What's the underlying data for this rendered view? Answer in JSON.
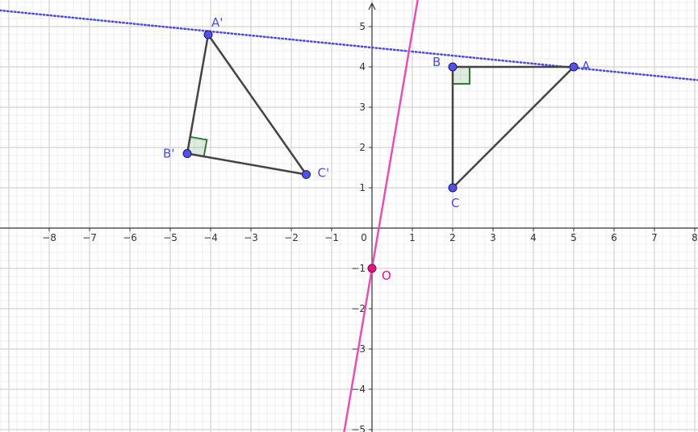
{
  "graph": {
    "x_ticks": [
      {
        "v": -8,
        "label": "−8"
      },
      {
        "v": -7,
        "label": "−7"
      },
      {
        "v": -6,
        "label": "−6"
      },
      {
        "v": -5,
        "label": "−5"
      },
      {
        "v": -4,
        "label": "−4"
      },
      {
        "v": -3,
        "label": "−3"
      },
      {
        "v": -2,
        "label": "−2"
      },
      {
        "v": -1,
        "label": "−1"
      },
      {
        "v": 0,
        "label": "0"
      },
      {
        "v": 1,
        "label": "1"
      },
      {
        "v": 2,
        "label": "2"
      },
      {
        "v": 3,
        "label": "3"
      },
      {
        "v": 4,
        "label": "4"
      },
      {
        "v": 5,
        "label": "5"
      },
      {
        "v": 6,
        "label": "6"
      },
      {
        "v": 7,
        "label": "7"
      },
      {
        "v": 8,
        "label": "8"
      }
    ],
    "y_ticks": [
      {
        "v": 5,
        "label": "5"
      },
      {
        "v": 4,
        "label": "4"
      },
      {
        "v": 3,
        "label": "3"
      },
      {
        "v": 2,
        "label": "2"
      },
      {
        "v": 1,
        "label": "1"
      },
      {
        "v": -1,
        "label": "−1"
      },
      {
        "v": -2,
        "label": "−2"
      },
      {
        "v": -3,
        "label": "−3"
      },
      {
        "v": -4,
        "label": "−4"
      },
      {
        "v": -5,
        "label": "−5"
      }
    ],
    "x_range": [
      -9.1,
      8.0
    ],
    "y_range": [
      -5.05,
      5.55
    ],
    "colors": {
      "point": "#5151e8",
      "point_label": "#4a4ae0",
      "segment": "#444444",
      "right_angle": "#2e7d32",
      "pink": "#e64fb4",
      "origin_point": "#e0167f",
      "dotted_line": "#4a4ae0"
    }
  },
  "points": [
    {
      "label": "A",
      "x": 5,
      "y": 4
    },
    {
      "label": "B",
      "x": 2,
      "y": 4
    },
    {
      "label": "C",
      "x": 2,
      "y": 1
    },
    {
      "label": "A'",
      "x": -4.06,
      "y": 4.8
    },
    {
      "label": "B'",
      "x": -4.58,
      "y": 1.85
    },
    {
      "label": "C'",
      "x": -1.63,
      "y": 1.33
    }
  ],
  "origin_point": {
    "label": "O",
    "x": 0,
    "y": -1
  },
  "pink_line": {
    "through": [
      [
        0,
        -1
      ],
      [
        0.17,
        0
      ]
    ]
  },
  "dotted_line": {
    "through": [
      [
        2,
        4.28
      ],
      [
        5,
        3.98
      ]
    ]
  }
}
